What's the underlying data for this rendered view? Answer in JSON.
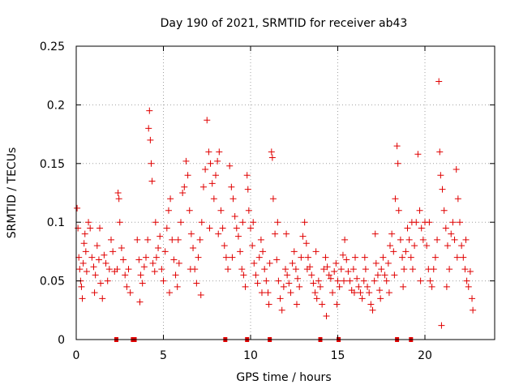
{
  "chart_data": {
    "type": "scatter",
    "title": "Day 190 of 2021, SRMTID for receiver ab43",
    "xlabel": "GPS time / hours",
    "ylabel": "SRMTID / TECUs",
    "xlim": [
      0,
      24
    ],
    "ylim": [
      0,
      0.25
    ],
    "x_ticks": [
      0,
      5,
      10,
      15,
      20
    ],
    "x_tick_labels": [
      "0",
      "5",
      "10",
      "15",
      "20"
    ],
    "y_ticks": [
      0,
      0.05,
      0.1,
      0.15,
      0.2,
      0.25
    ],
    "y_tick_labels": [
      "0",
      "0.05",
      "0.1",
      "0.15",
      "0.2",
      "0.25"
    ],
    "grid": true,
    "marker": "plus",
    "color": "#e00000",
    "series": [
      {
        "name": "SRMTID",
        "points": [
          [
            0.05,
            0.112
          ],
          [
            0.1,
            0.095
          ],
          [
            0.15,
            0.07
          ],
          [
            0.2,
            0.06
          ],
          [
            0.25,
            0.05
          ],
          [
            0.3,
            0.045
          ],
          [
            0.35,
            0.035
          ],
          [
            0.4,
            0.065
          ],
          [
            0.45,
            0.082
          ],
          [
            0.5,
            0.09
          ],
          [
            0.55,
            0.075
          ],
          [
            0.6,
            0.058
          ],
          [
            0.7,
            0.1
          ],
          [
            0.8,
            0.095
          ],
          [
            0.9,
            0.07
          ],
          [
            1.0,
            0.062
          ],
          [
            1.1,
            0.055
          ],
          [
            1.2,
            0.08
          ],
          [
            1.3,
            0.068
          ],
          [
            1.4,
            0.048
          ],
          [
            1.5,
            0.035
          ],
          [
            1.6,
            0.072
          ],
          [
            1.7,
            0.065
          ],
          [
            1.8,
            0.05
          ],
          [
            1.9,
            0.06
          ],
          [
            2.0,
            0.085
          ],
          [
            2.1,
            0.075
          ],
          [
            2.2,
            0.058
          ],
          [
            2.4,
            0.125
          ],
          [
            2.45,
            0.12
          ],
          [
            2.5,
            0.1
          ],
          [
            2.6,
            0.078
          ],
          [
            2.7,
            0.068
          ],
          [
            2.8,
            0.055
          ],
          [
            2.9,
            0.045
          ],
          [
            3.0,
            0.06
          ],
          [
            3.1,
            0.04
          ],
          [
            3.5,
            0.085
          ],
          [
            3.6,
            0.068
          ],
          [
            3.7,
            0.055
          ],
          [
            3.8,
            0.048
          ],
          [
            3.9,
            0.062
          ],
          [
            4.0,
            0.07
          ],
          [
            4.1,
            0.085
          ],
          [
            4.15,
            0.18
          ],
          [
            4.2,
            0.195
          ],
          [
            4.25,
            0.17
          ],
          [
            4.3,
            0.15
          ],
          [
            4.35,
            0.135
          ],
          [
            4.4,
            0.065
          ],
          [
            4.5,
            0.058
          ],
          [
            4.6,
            0.07
          ],
          [
            4.7,
            0.078
          ],
          [
            4.8,
            0.088
          ],
          [
            4.9,
            0.06
          ],
          [
            5.0,
            0.05
          ],
          [
            5.1,
            0.075
          ],
          [
            5.2,
            0.095
          ],
          [
            5.3,
            0.11
          ],
          [
            5.4,
            0.12
          ],
          [
            5.5,
            0.085
          ],
          [
            5.6,
            0.068
          ],
          [
            5.7,
            0.055
          ],
          [
            5.8,
            0.045
          ],
          [
            5.9,
            0.065
          ],
          [
            6.0,
            0.1
          ],
          [
            6.1,
            0.125
          ],
          [
            6.2,
            0.13
          ],
          [
            6.3,
            0.152
          ],
          [
            6.4,
            0.14
          ],
          [
            6.5,
            0.11
          ],
          [
            6.6,
            0.09
          ],
          [
            6.7,
            0.078
          ],
          [
            6.8,
            0.06
          ],
          [
            6.9,
            0.048
          ],
          [
            7.0,
            0.07
          ],
          [
            7.1,
            0.085
          ],
          [
            7.2,
            0.1
          ],
          [
            7.3,
            0.13
          ],
          [
            7.4,
            0.145
          ],
          [
            7.5,
            0.187
          ],
          [
            7.6,
            0.16
          ],
          [
            7.7,
            0.15
          ],
          [
            7.8,
            0.133
          ],
          [
            7.9,
            0.12
          ],
          [
            8.0,
            0.14
          ],
          [
            8.1,
            0.152
          ],
          [
            8.2,
            0.16
          ],
          [
            8.3,
            0.11
          ],
          [
            8.4,
            0.095
          ],
          [
            8.5,
            0.08
          ],
          [
            8.6,
            0.07
          ],
          [
            8.7,
            0.06
          ],
          [
            8.8,
            0.148
          ],
          [
            8.9,
            0.13
          ],
          [
            9.0,
            0.12
          ],
          [
            9.1,
            0.105
          ],
          [
            9.2,
            0.095
          ],
          [
            9.3,
            0.088
          ],
          [
            9.4,
            0.075
          ],
          [
            9.5,
            0.06
          ],
          [
            9.6,
            0.055
          ],
          [
            9.7,
            0.045
          ],
          [
            9.8,
            0.14
          ],
          [
            9.85,
            0.128
          ],
          [
            9.9,
            0.11
          ],
          [
            10.0,
            0.095
          ],
          [
            10.1,
            0.08
          ],
          [
            10.2,
            0.065
          ],
          [
            10.3,
            0.055
          ],
          [
            10.4,
            0.048
          ],
          [
            10.5,
            0.07
          ],
          [
            10.6,
            0.085
          ],
          [
            10.7,
            0.075
          ],
          [
            10.8,
            0.06
          ],
          [
            10.9,
            0.05
          ],
          [
            11.0,
            0.04
          ],
          [
            11.1,
            0.065
          ],
          [
            11.2,
            0.16
          ],
          [
            11.25,
            0.155
          ],
          [
            11.3,
            0.12
          ],
          [
            11.4,
            0.09
          ],
          [
            11.5,
            0.068
          ],
          [
            11.6,
            0.05
          ],
          [
            11.7,
            0.035
          ],
          [
            11.8,
            0.025
          ],
          [
            11.9,
            0.045
          ],
          [
            12.0,
            0.06
          ],
          [
            12.1,
            0.055
          ],
          [
            12.2,
            0.048
          ],
          [
            12.3,
            0.04
          ],
          [
            12.4,
            0.065
          ],
          [
            12.5,
            0.075
          ],
          [
            12.6,
            0.06
          ],
          [
            12.7,
            0.052
          ],
          [
            12.8,
            0.045
          ],
          [
            12.9,
            0.07
          ],
          [
            13.0,
            0.088
          ],
          [
            13.1,
            0.1
          ],
          [
            13.2,
            0.082
          ],
          [
            13.3,
            0.07
          ],
          [
            13.4,
            0.062
          ],
          [
            13.5,
            0.055
          ],
          [
            13.6,
            0.048
          ],
          [
            13.7,
            0.04
          ],
          [
            13.8,
            0.035
          ],
          [
            13.9,
            0.05
          ],
          [
            14.0,
            0.045
          ],
          [
            14.1,
            0.03
          ],
          [
            14.2,
            0.06
          ],
          [
            14.3,
            0.07
          ],
          [
            14.4,
            0.062
          ],
          [
            14.5,
            0.055
          ],
          [
            14.6,
            0.052
          ],
          [
            14.7,
            0.04
          ],
          [
            14.8,
            0.058
          ],
          [
            14.9,
            0.065
          ],
          [
            15.0,
            0.05
          ],
          [
            15.1,
            0.045
          ],
          [
            15.2,
            0.06
          ],
          [
            15.3,
            0.072
          ],
          [
            15.4,
            0.085
          ],
          [
            15.5,
            0.068
          ],
          [
            15.6,
            0.058
          ],
          [
            15.7,
            0.05
          ],
          [
            15.8,
            0.042
          ],
          [
            15.9,
            0.06
          ],
          [
            16.0,
            0.07
          ],
          [
            16.1,
            0.052
          ],
          [
            16.2,
            0.045
          ],
          [
            16.3,
            0.04
          ],
          [
            16.4,
            0.035
          ],
          [
            16.5,
            0.05
          ],
          [
            16.6,
            0.06
          ],
          [
            16.7,
            0.045
          ],
          [
            16.8,
            0.04
          ],
          [
            16.9,
            0.03
          ],
          [
            17.0,
            0.025
          ],
          [
            17.1,
            0.05
          ],
          [
            17.2,
            0.065
          ],
          [
            17.3,
            0.055
          ],
          [
            17.4,
            0.042
          ],
          [
            17.5,
            0.06
          ],
          [
            17.6,
            0.07
          ],
          [
            17.7,
            0.055
          ],
          [
            17.8,
            0.05
          ],
          [
            17.9,
            0.065
          ],
          [
            18.0,
            0.08
          ],
          [
            18.1,
            0.09
          ],
          [
            18.2,
            0.075
          ],
          [
            18.3,
            0.12
          ],
          [
            18.4,
            0.165
          ],
          [
            18.45,
            0.15
          ],
          [
            18.5,
            0.11
          ],
          [
            18.6,
            0.085
          ],
          [
            18.7,
            0.07
          ],
          [
            18.8,
            0.06
          ],
          [
            18.9,
            0.075
          ],
          [
            19.0,
            0.095
          ],
          [
            19.1,
            0.085
          ],
          [
            19.2,
            0.07
          ],
          [
            19.3,
            0.06
          ],
          [
            19.4,
            0.08
          ],
          [
            19.5,
            0.1
          ],
          [
            19.6,
            0.158
          ],
          [
            19.7,
            0.11
          ],
          [
            19.8,
            0.095
          ],
          [
            19.9,
            0.085
          ],
          [
            20.0,
            0.1
          ],
          [
            20.1,
            0.08
          ],
          [
            20.2,
            0.06
          ],
          [
            20.3,
            0.05
          ],
          [
            20.4,
            0.045
          ],
          [
            20.5,
            0.06
          ],
          [
            20.6,
            0.07
          ],
          [
            20.7,
            0.085
          ],
          [
            20.8,
            0.22
          ],
          [
            20.85,
            0.16
          ],
          [
            20.9,
            0.14
          ],
          [
            21.0,
            0.128
          ],
          [
            21.1,
            0.11
          ],
          [
            21.2,
            0.095
          ],
          [
            21.3,
            0.08
          ],
          [
            21.4,
            0.06
          ],
          [
            21.5,
            0.09
          ],
          [
            21.6,
            0.1
          ],
          [
            21.7,
            0.085
          ],
          [
            21.8,
            0.145
          ],
          [
            21.9,
            0.12
          ],
          [
            22.0,
            0.1
          ],
          [
            22.1,
            0.08
          ],
          [
            22.2,
            0.07
          ],
          [
            22.3,
            0.06
          ],
          [
            22.4,
            0.05
          ],
          [
            22.5,
            0.045
          ],
          [
            22.6,
            0.058
          ],
          [
            22.7,
            0.035
          ],
          [
            22.75,
            0.025
          ],
          [
            1.05,
            0.04
          ],
          [
            1.35,
            0.095
          ],
          [
            2.35,
            0.06
          ],
          [
            3.65,
            0.032
          ],
          [
            4.55,
            0.1
          ],
          [
            5.35,
            0.04
          ],
          [
            5.85,
            0.085
          ],
          [
            6.55,
            0.06
          ],
          [
            7.15,
            0.038
          ],
          [
            7.65,
            0.095
          ],
          [
            8.15,
            0.09
          ],
          [
            8.95,
            0.07
          ],
          [
            9.55,
            0.1
          ],
          [
            10.15,
            0.1
          ],
          [
            10.65,
            0.04
          ],
          [
            11.05,
            0.03
          ],
          [
            11.55,
            0.1
          ],
          [
            12.05,
            0.09
          ],
          [
            12.65,
            0.03
          ],
          [
            13.25,
            0.06
          ],
          [
            13.75,
            0.075
          ],
          [
            14.35,
            0.02
          ],
          [
            14.95,
            0.03
          ],
          [
            15.35,
            0.05
          ],
          [
            15.95,
            0.04
          ],
          [
            16.55,
            0.07
          ],
          [
            17.15,
            0.09
          ],
          [
            17.45,
            0.035
          ],
          [
            17.95,
            0.04
          ],
          [
            18.25,
            0.055
          ],
          [
            18.75,
            0.045
          ],
          [
            19.25,
            0.1
          ],
          [
            19.75,
            0.05
          ],
          [
            20.25,
            0.1
          ],
          [
            20.95,
            0.012
          ],
          [
            21.25,
            0.045
          ],
          [
            21.85,
            0.07
          ],
          [
            22.35,
            0.085
          ]
        ]
      }
    ],
    "axis_markers": {
      "y": 0,
      "x": [
        2.3,
        3.25,
        3.35,
        8.55,
        9.8,
        11.1,
        14.0,
        15.05,
        18.4,
        19.2
      ]
    }
  }
}
